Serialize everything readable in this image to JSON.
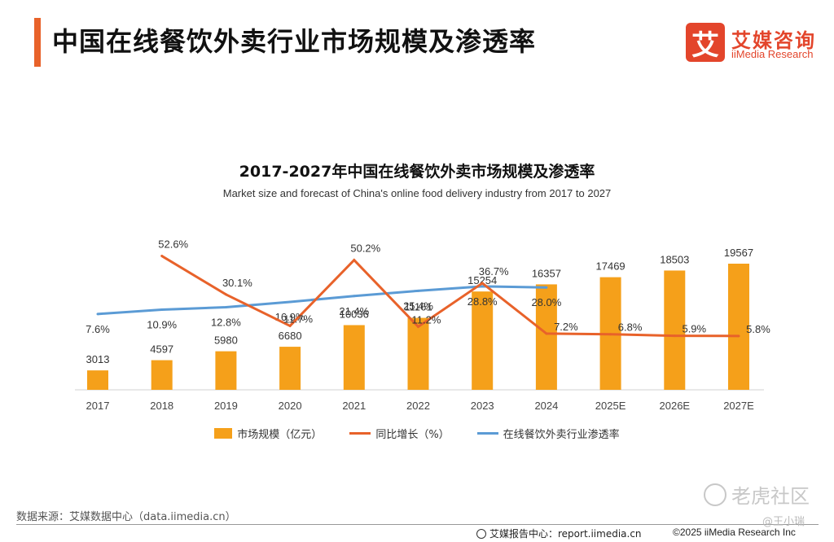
{
  "header": {
    "title": "中国在线餐饮外卖行业市场规模及渗透率",
    "logo_char": "艾",
    "logo_cn": "艾媒咨询",
    "logo_en": "iiMedia Research"
  },
  "chart_data": {
    "type": "bar",
    "title": "2017-2027年中国在线餐饮外卖市场规模及渗透率",
    "subtitle": "Market size and forecast of China's online food delivery industry from 2017 to 2027",
    "categories": [
      "2017",
      "2018",
      "2019",
      "2020",
      "2021",
      "2022",
      "2023",
      "2024",
      "2025E",
      "2026E",
      "2027E"
    ],
    "series": [
      {
        "name": "市场规模（亿元）",
        "kind": "bar",
        "color": "#f5a01a",
        "values": [
          3013,
          4597,
          5980,
          6680,
          10036,
          11161,
          15254,
          16357,
          17469,
          18503,
          19567
        ]
      },
      {
        "name": "同比增长（%）",
        "kind": "line",
        "color": "#e8622a",
        "values": [
          null,
          52.6,
          30.1,
          11.7,
          50.2,
          11.2,
          36.7,
          7.2,
          6.8,
          5.9,
          5.8
        ],
        "labels": [
          "",
          "52.6%",
          "30.1%",
          "11.7%",
          "50.2%",
          "11.2%",
          "36.7%",
          "7.2%",
          "6.8%",
          "5.9%",
          "5.8%"
        ]
      },
      {
        "name": "在线餐饮外卖行业渗透率",
        "kind": "line",
        "color": "#5b9bd5",
        "values": [
          7.6,
          10.9,
          12.8,
          16.9,
          21.4,
          25.4,
          28.8,
          28.0,
          null,
          null,
          null
        ],
        "labels": [
          "7.6%",
          "10.9%",
          "12.8%",
          "16.9%",
          "21.4%",
          "25.4%",
          "28.8%",
          "28.0%",
          "",
          "",
          ""
        ]
      }
    ]
  },
  "footer": {
    "source": "数据来源：艾媒数据中心（data.iimedia.cn）",
    "report": "艾媒报告中心：report.iimedia.cn",
    "copyright": "©2025  iiMedia Research  Inc"
  },
  "watermark": {
    "text": "老虎社区",
    "author": "@王小瑞"
  }
}
